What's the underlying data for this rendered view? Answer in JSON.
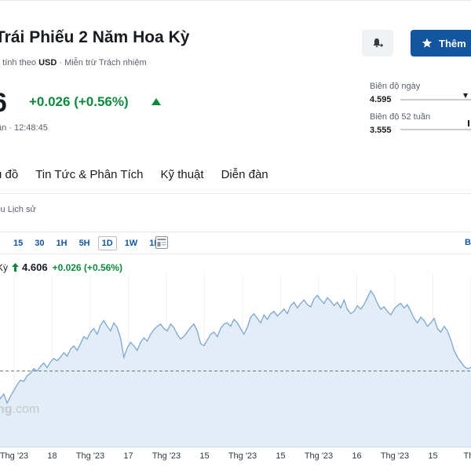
{
  "header": {
    "title": "Trái Phiếu 2 Năm Hoa Kỳ",
    "currency_prefix": "ệ tính theo",
    "currency": "USD",
    "disclaimer": "· Miễn trừ Trách nhiệm",
    "watch_label": "Thêm"
  },
  "quote": {
    "price": "6",
    "change": "+0.026 (+0.56%)",
    "time": "ần · 12:48:45",
    "up_color": "#0e8a3e"
  },
  "ranges": {
    "day_label": "Biên độ ngày",
    "day_value": "4.595",
    "week52_label": "Biên độ 52 tuần",
    "week52_value": "3.555"
  },
  "nav": {
    "tabs": [
      "u đồ",
      "Tin Tức & Phân Tích",
      "Kỹ thuật",
      "Diễn đàn"
    ],
    "sub": "iệu Lịch sử"
  },
  "timeframes": {
    "items": [
      "15",
      "30",
      "1H",
      "5H",
      "1D",
      "1W",
      "1M"
    ],
    "active": "1D",
    "right": "B"
  },
  "legend": {
    "name": "Kỳ",
    "price": "4.606",
    "change": "+0.026 (+0.56%)"
  },
  "watermark": {
    "text": "ng",
    "suffix": ".com"
  },
  "chart_data": {
    "type": "area",
    "title": "",
    "xlabel": "",
    "ylabel": "",
    "x_ticks": [
      "Thg '23",
      "18",
      "Thg '23",
      "17",
      "Thg '23",
      "15",
      "Thg '23",
      "15",
      "Thg '23",
      "16",
      "Thg '23",
      "15",
      "Thg"
    ],
    "series": [
      {
        "values": [
          4.45,
          4.4,
          4.34,
          4.38,
          4.3,
          4.36,
          4.41,
          4.46,
          4.5,
          4.49,
          4.54,
          4.56,
          4.6,
          4.58,
          4.62,
          4.65,
          4.61,
          4.66,
          4.69,
          4.67,
          4.7,
          4.74,
          4.71,
          4.77,
          4.8,
          4.76,
          4.82,
          4.88,
          4.86,
          4.92,
          4.95,
          4.9,
          4.98,
          5.02,
          4.97,
          4.93,
          5.0,
          4.96,
          4.87,
          4.7,
          4.78,
          4.83,
          4.8,
          4.76,
          4.83,
          4.87,
          4.84,
          4.9,
          4.94,
          4.97,
          4.99,
          4.95,
          4.93,
          4.99,
          4.96,
          4.9,
          4.86,
          4.88,
          4.92,
          4.96,
          4.99,
          4.93,
          4.82,
          4.8,
          4.85,
          4.9,
          4.92,
          4.88,
          4.95,
          4.99,
          5.0,
          4.97,
          5.03,
          5.0,
          4.95,
          4.9,
          4.96,
          5.05,
          5.08,
          5.04,
          5.0,
          5.07,
          5.03,
          5.08,
          5.1,
          5.06,
          5.09,
          5.12,
          5.08,
          5.15,
          5.18,
          5.13,
          5.17,
          5.2,
          5.16,
          5.14,
          5.21,
          5.24,
          5.2,
          5.17,
          5.22,
          5.19,
          5.15,
          5.18,
          5.13,
          5.2,
          5.12,
          5.08,
          5.1,
          5.15,
          5.12,
          5.16,
          5.22,
          5.28,
          5.24,
          5.17,
          5.12,
          5.14,
          5.1,
          5.07,
          5.12,
          5.15,
          5.17,
          5.13,
          5.16,
          5.1,
          5.04,
          5.0,
          5.05,
          5.02,
          4.97,
          5.0,
          5.04,
          4.95,
          4.92,
          4.97,
          4.93,
          4.85,
          4.76,
          4.7,
          4.66,
          4.62,
          4.6,
          4.61,
          4.62
        ],
        "reference": 4.58
      }
    ],
    "grid": true,
    "legend": "top-left"
  }
}
